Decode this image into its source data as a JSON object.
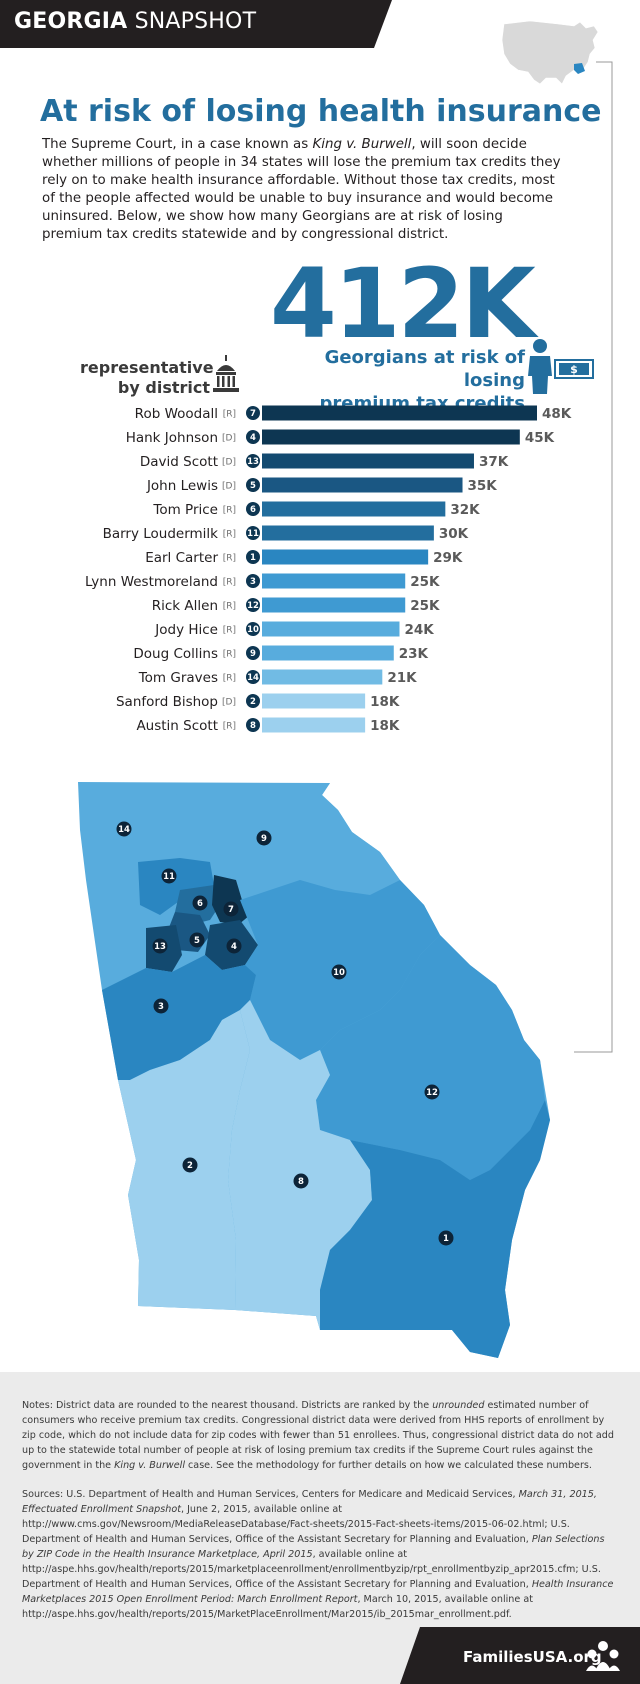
{
  "header": {
    "title_bold": "GEORGIA",
    "title_rest": "SNAPSHOT"
  },
  "title": "At risk of losing health insurance",
  "intro": {
    "part1": "The Supreme Court, in a case known as ",
    "case_name": "King v. Burwell",
    "part2": ", will soon decide whether millions of people in 34 states will lose the premium tax credits they rely on to make health insurance affordable. Without those tax credits, most of the people affected would be unable to buy insurance and would become uninsured. Below, we show how many Georgians are at risk of losing premium tax credits statewide and by congressional district."
  },
  "big_number": "412K",
  "big_label_line1": "Georgians at risk of losing",
  "big_label_line2": "premium tax credits",
  "dollar_symbol": "$",
  "rep_label_line1": "representative",
  "rep_label_line2": "by district",
  "chart_data": {
    "type": "bar",
    "orientation": "horizontal",
    "title": "Georgians at risk of losing premium tax credits by congressional district",
    "xlabel": "",
    "ylabel": "representative by district",
    "xlim": [
      0,
      48
    ],
    "unit": "thousands",
    "categories": [
      "Rob Woodall",
      "Hank Johnson",
      "David Scott",
      "John Lewis",
      "Tom Price",
      "Barry Loudermilk",
      "Earl Carter",
      "Lynn Westmoreland",
      "Rick Allen",
      "Jody Hice",
      "Doug Collins",
      "Tom Graves",
      "Sanford Bishop",
      "Austin Scott"
    ],
    "parties": [
      "[R]",
      "[D]",
      "[D]",
      "[D]",
      "[R]",
      "[R]",
      "[R]",
      "[R]",
      "[R]",
      "[R]",
      "[R]",
      "[R]",
      "[D]",
      "[R]"
    ],
    "districts": [
      7,
      4,
      13,
      5,
      6,
      11,
      1,
      3,
      12,
      10,
      9,
      14,
      2,
      8
    ],
    "values": [
      48,
      45,
      37,
      35,
      32,
      30,
      29,
      25,
      25,
      24,
      23,
      21,
      18,
      18
    ],
    "value_labels": [
      "48K",
      "45K",
      "37K",
      "35K",
      "32K",
      "30K",
      "29K",
      "25K",
      "25K",
      "24K",
      "23K",
      "21K",
      "18K",
      "18K"
    ],
    "colors": [
      "#0d3652",
      "#0d3652",
      "#134a70",
      "#1a5783",
      "#236e9e",
      "#236e9e",
      "#2a86c1",
      "#3f9ad2",
      "#3f9ad2",
      "#58acdd",
      "#58acdd",
      "#71bbe4",
      "#9cd0ee",
      "#9cd0ee"
    ]
  },
  "map": {
    "region": "Georgia congressional districts",
    "district_labels": [
      "14",
      "9",
      "11",
      "6",
      "7",
      "5",
      "4",
      "13",
      "10",
      "3",
      "12",
      "2",
      "8",
      "1"
    ]
  },
  "notes": {
    "p1": "Notes: District data are rounded to the nearest thousand. Districts are ranked by the ",
    "p1_i": "unrounded",
    "p2": " estimated number of consumers who receive premium tax credits. Congressional district data were derived from HHS reports of enrollment by zip code, which do not include data for zip codes with fewer than 51 enrollees. Thus, congressional district data do not add up to the statewide total number of people at risk of losing premium tax credits if the Supreme Court rules against the government in the ",
    "p2_i": "King v. Burwell",
    "p3": " case. See the methodology for further details on how we calculated these numbers."
  },
  "sources": {
    "s1": "Sources: U.S. Department of Health and Human Services, Centers for Medicare and Medicaid Services, ",
    "s1_i": "March 31, 2015, Effectuated Enrollment Snapshot",
    "s2": ", June 2, 2015, available online at http://www.cms.gov/Newsroom/MediaReleaseDatabase/Fact-sheets/2015-Fact-sheets-items/2015-06-02.html; U.S. Department of Health and Human Services, Office of the Assistant Secretary for Planning and Evaluation, ",
    "s2_i": "Plan Selections by ZIP Code in the Health Insurance Marketplace, April 2015",
    "s3": ", available online at http://aspe.hhs.gov/health/reports/2015/marketplaceenrollment/enrollmentbyzip/rpt_enrollmentbyzip_apr2015.cfm; U.S. Department of Health and Human Services, Office of the Assistant Secretary for Planning and Evaluation, ",
    "s3_i": "Health Insurance Marketplaces 2015 Open Enrollment Period: March Enrollment Report",
    "s4": ", March 10, 2015, available online at http://aspe.hhs.gov/health/reports/2015/MarketPlaceEnrollment/Mar2015/ib_2015mar_enrollment.pdf."
  },
  "footer": {
    "brand": "FamiliesUSA.org"
  },
  "colors": {
    "accent": "#236e9e",
    "dark": "#231f20",
    "footer_bg": "#ebebeb"
  }
}
